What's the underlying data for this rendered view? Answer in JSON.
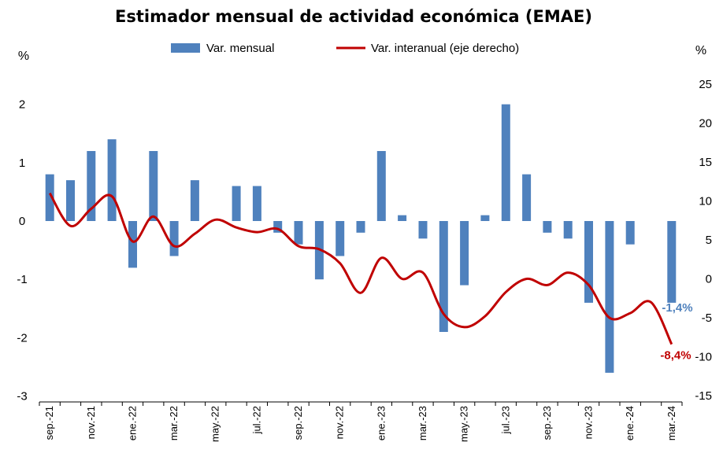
{
  "chart_data": {
    "type": "bar+line",
    "title": "Estimador mensual de actividad económica (EMAE)",
    "y_left_unit": "%",
    "y_right_unit": "%",
    "ylim_left": [
      -3,
      2.5
    ],
    "ylim_right": [
      -15,
      25
    ],
    "y_left_ticks": [
      "2",
      "1",
      "0",
      "-1",
      "-2",
      "-3"
    ],
    "y_right_ticks": [
      "25",
      "20",
      "15",
      "10",
      "5",
      "0",
      "-5",
      "-10",
      "-15"
    ],
    "x_tick_labels": [
      "sep.-21",
      "nov.-21",
      "ene.-22",
      "mar.-22",
      "may.-22",
      "jul.-22",
      "sep.-22",
      "nov.-22",
      "ene.-23",
      "mar.-23",
      "may.-23",
      "jul.-23",
      "sep.-23",
      "nov.-23",
      "ene.-24",
      "mar.-24"
    ],
    "categories": [
      "sep.-21",
      "oct.-21",
      "nov.-21",
      "dic.-21",
      "ene.-22",
      "feb.-22",
      "mar.-22",
      "abr.-22",
      "may.-22",
      "jun.-22",
      "jul.-22",
      "ago.-22",
      "sep.-22",
      "oct.-22",
      "nov.-22",
      "dic.-22",
      "ene.-23",
      "feb.-23",
      "mar.-23",
      "abr.-23",
      "may.-23",
      "jun.-23",
      "jul.-23",
      "ago.-23",
      "sep.-23",
      "oct.-23",
      "nov.-23",
      "dic.-23",
      "ene.-24",
      "feb.-24",
      "mar.-24"
    ],
    "series": [
      {
        "name": "Var. mensual",
        "type": "bar",
        "axis": "left",
        "color": "#4F81BD",
        "values": [
          0.8,
          0.7,
          1.2,
          1.4,
          -0.8,
          1.2,
          -0.6,
          0.7,
          0.0,
          0.6,
          0.6,
          -0.2,
          -0.4,
          -1.0,
          -0.6,
          -0.2,
          1.2,
          0.1,
          -0.3,
          -1.9,
          -1.1,
          0.1,
          2.0,
          0.8,
          -0.2,
          -0.3,
          -1.4,
          -2.6,
          -0.4,
          0.0,
          -1.4
        ]
      },
      {
        "name": "Var. interanual (eje derecho)",
        "type": "line",
        "axis": "right",
        "color": "#C00000",
        "values": [
          11.0,
          6.8,
          9.0,
          10.6,
          4.8,
          8.0,
          4.2,
          5.8,
          7.6,
          6.6,
          6.0,
          6.4,
          4.2,
          3.8,
          2.0,
          -1.8,
          2.7,
          0.0,
          0.8,
          -4.5,
          -6.2,
          -4.8,
          -1.7,
          0.0,
          -0.8,
          0.8,
          -0.8,
          -5.0,
          -4.4,
          -3.0,
          -8.4
        ]
      }
    ],
    "annotations": [
      {
        "text": "-1,4%",
        "series": "Var. mensual",
        "category": "mar.-24",
        "color": "#4F81BD"
      },
      {
        "text": "-8,4%",
        "series": "Var. interanual (eje derecho)",
        "category": "mar.-24",
        "color": "#C00000"
      }
    ],
    "legend": {
      "position": "top",
      "items": [
        "Var. mensual",
        "Var. interanual (eje derecho)"
      ]
    },
    "grid": false
  }
}
